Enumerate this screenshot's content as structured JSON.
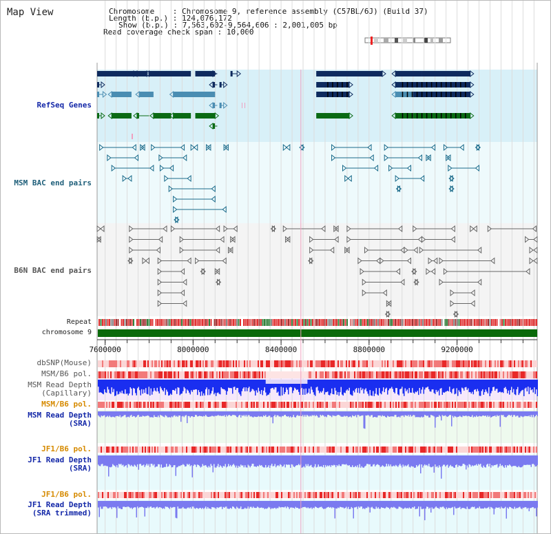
{
  "header": {
    "title": "Map View",
    "chromosome_label": "Chromosome",
    "chromosome_value": ": Chromosome 9, reference assembly (C57BL/6J) (Build 37)",
    "length_label": "Length (b.p.)",
    "length_value": ": 124,076,172",
    "show_label": "Show (b.p.)",
    "show_value": ": 7,563,602-9,564,606 : 2,001,005 bp",
    "read_span_label": "Read coverage check span",
    "read_span_value": ": 10,000"
  },
  "region": {
    "start": 7563602,
    "end": 9564606,
    "chrom_length": 124076172
  },
  "tracks": {
    "refseq": "RefSeq Genes",
    "msm_bac": "MSM BAC end pairs",
    "b6n_bac": "B6N BAC end pairs",
    "repeat": "Repeat",
    "chromosome": "chromosome 9",
    "dbsnp": "dbSNP(Mouse)",
    "msm_b6_pol_1": "MSM/B6 pol.",
    "msm_depth_cap_1": "MSM Read Depth",
    "msm_depth_cap_2": "(Capillary)",
    "msm_b6_pol_2": "MSM/B6 pol.",
    "msm_depth_sra_1": "MSM Read Depth",
    "msm_depth_sra_2": "(SRA)",
    "jf1_b6_pol_1": "JF1/B6 pol.",
    "jf1_depth_sra_1": "JF1 Read Depth",
    "jf1_depth_sra_2": "(SRA)",
    "jf1_b6_pol_2": "JF1/B6 pol.",
    "jf1_depth_trim_1": "JF1 Read Depth",
    "jf1_depth_trim_2": "(SRA trimmed)"
  },
  "axis": {
    "ticks": [
      {
        "value": 7600000,
        "label": "7600000"
      },
      {
        "value": 8000000,
        "label": "8000000"
      },
      {
        "value": 8400000,
        "label": "8400000"
      },
      {
        "value": 8800000,
        "label": "8800000"
      },
      {
        "value": 9200000,
        "label": "9200000"
      }
    ]
  },
  "genes": [
    {
      "start": 7563602,
      "end": 7790000,
      "strand": "+",
      "color": "#0e2a5e",
      "row": 0
    },
    {
      "start": 7635000,
      "end": 7730000,
      "strand": "+",
      "color": "#0e2a5e",
      "row": 0
    },
    {
      "start": 7745000,
      "end": 7800000,
      "strand": "-",
      "color": "#0e2a5e",
      "row": 0
    },
    {
      "start": 7800000,
      "end": 7990000,
      "strand": "-",
      "color": "#0e2a5e",
      "row": 0
    },
    {
      "start": 8010000,
      "end": 8090000,
      "strand": "+",
      "color": "#0e2a5e",
      "row": 0
    },
    {
      "start": 8090000,
      "end": 8110000,
      "strand": "-",
      "color": "#0e2a5e",
      "row": 0
    },
    {
      "start": 8170000,
      "end": 8200000,
      "strand": "+",
      "color": "#0e2a5e",
      "row": 0
    },
    {
      "start": 8560000,
      "end": 8860000,
      "strand": "+",
      "color": "#0e2a5e",
      "row": 0
    },
    {
      "start": 8920000,
      "end": 9040000,
      "strand": "-",
      "color": "#0e2a5e",
      "row": 0
    },
    {
      "start": 9040000,
      "end": 9260000,
      "strand": "+",
      "color": "#0e2a5e",
      "row": 0
    },
    {
      "start": 7563602,
      "end": 7575000,
      "strand": "+",
      "color": "#0e2a5e",
      "row": 1
    },
    {
      "start": 8090000,
      "end": 8110000,
      "strand": "-",
      "color": "#0e2a5e",
      "row": 1
    },
    {
      "start": 8120000,
      "end": 8130000,
      "strand": "+",
      "color": "#0e2a5e",
      "row": 1
    },
    {
      "start": 8560000,
      "end": 8710000,
      "strand": "+",
      "color": "#0e2a5e",
      "row": 1
    },
    {
      "start": 8920000,
      "end": 9040000,
      "strand": "-",
      "color": "#0e2a5e",
      "row": 1
    },
    {
      "start": 9040000,
      "end": 9260000,
      "strand": "+",
      "color": "#0e2a5e",
      "row": 1
    },
    {
      "start": 7563602,
      "end": 7590000,
      "strand": "+",
      "color": "#4a8db2",
      "row": 2
    },
    {
      "start": 7630000,
      "end": 7720000,
      "strand": "-",
      "color": "#4a8db2",
      "row": 2
    },
    {
      "start": 7755000,
      "end": 7820000,
      "strand": "-",
      "color": "#4a8db2",
      "row": 2
    },
    {
      "start": 7910000,
      "end": 8100000,
      "strand": "-",
      "color": "#4a8db2",
      "row": 2
    },
    {
      "start": 8560000,
      "end": 8710000,
      "strand": "+",
      "color": "#0e2a5e",
      "row": 2
    },
    {
      "start": 8920000,
      "end": 9000000,
      "strand": "-",
      "color": "#4a8db2",
      "row": 2
    },
    {
      "start": 9000000,
      "end": 9260000,
      "strand": "+",
      "color": "#0e2a5e",
      "row": 2
    },
    {
      "start": 8090000,
      "end": 8110000,
      "strand": "-",
      "color": "#4a8db2",
      "row": 3
    },
    {
      "start": 8120000,
      "end": 8130000,
      "strand": "+",
      "color": "#4a8db2",
      "row": 3
    },
    {
      "start": 7563602,
      "end": 7580000,
      "strand": "+",
      "color": "#0a6a14",
      "row": 4
    },
    {
      "start": 7630000,
      "end": 7720000,
      "strand": "-",
      "color": "#0a6a14",
      "row": 4
    },
    {
      "start": 7745000,
      "end": 7800000,
      "strand": "-",
      "color": "#0a6a14",
      "row": 4
    },
    {
      "start": 7820000,
      "end": 7900000,
      "strand": "-",
      "color": "#0a6a14",
      "row": 4
    },
    {
      "start": 7910000,
      "end": 7990000,
      "strand": "-",
      "color": "#0a6a14",
      "row": 4
    },
    {
      "start": 8010000,
      "end": 8100000,
      "strand": "+",
      "color": "#0a6a14",
      "row": 4
    },
    {
      "start": 8560000,
      "end": 8710000,
      "strand": "+",
      "color": "#0a6a14",
      "row": 4
    },
    {
      "start": 8920000,
      "end": 9000000,
      "strand": "-",
      "color": "#0a6a14",
      "row": 4
    },
    {
      "start": 9000000,
      "end": 9260000,
      "strand": "+",
      "color": "#0a6a14",
      "row": 4
    },
    {
      "start": 8090000,
      "end": 8110000,
      "strand": "-",
      "color": "#0a6a14",
      "row": 5
    }
  ],
  "msm_pairs": [
    {
      "start": 7575000,
      "end": 7740000,
      "row": 0
    },
    {
      "start": 7760000,
      "end": 7780000,
      "row": 0
    },
    {
      "start": 7810000,
      "end": 7960000,
      "row": 0
    },
    {
      "start": 7990000,
      "end": 8020000,
      "row": 0
    },
    {
      "start": 8060000,
      "end": 8080000,
      "row": 0
    },
    {
      "start": 8140000,
      "end": 8160000,
      "row": 0
    },
    {
      "start": 8410000,
      "end": 8440000,
      "row": 0
    },
    {
      "start": 8490000,
      "end": 8500000,
      "row": 0
    },
    {
      "start": 8630000,
      "end": 8810000,
      "row": 0
    },
    {
      "start": 8870000,
      "end": 9100000,
      "row": 0
    },
    {
      "start": 9140000,
      "end": 9230000,
      "row": 0
    },
    {
      "start": 9290000,
      "end": 9300000,
      "row": 0
    },
    {
      "start": 7610000,
      "end": 7750000,
      "row": 1
    },
    {
      "start": 7845000,
      "end": 7970000,
      "row": 1
    },
    {
      "start": 8630000,
      "end": 8820000,
      "row": 1
    },
    {
      "start": 8870000,
      "end": 9040000,
      "row": 1
    },
    {
      "start": 9060000,
      "end": 9080000,
      "row": 1
    },
    {
      "start": 9150000,
      "end": 9170000,
      "row": 1
    },
    {
      "start": 7630000,
      "end": 7820000,
      "row": 2
    },
    {
      "start": 7850000,
      "end": 7910000,
      "row": 2
    },
    {
      "start": 8680000,
      "end": 8840000,
      "row": 2
    },
    {
      "start": 8890000,
      "end": 8990000,
      "row": 2
    },
    {
      "start": 9160000,
      "end": 9300000,
      "row": 2
    },
    {
      "start": 7680000,
      "end": 7720000,
      "row": 3
    },
    {
      "start": 7870000,
      "end": 7990000,
      "row": 3
    },
    {
      "start": 8690000,
      "end": 8720000,
      "row": 3
    },
    {
      "start": 8920000,
      "end": 9050000,
      "row": 3
    },
    {
      "start": 9170000,
      "end": 9180000,
      "row": 3
    },
    {
      "start": 7890000,
      "end": 8100000,
      "row": 4
    },
    {
      "start": 8930000,
      "end": 8940000,
      "row": 4
    },
    {
      "start": 9170000,
      "end": 9180000,
      "row": 4
    },
    {
      "start": 7910000,
      "end": 8100000,
      "row": 5
    },
    {
      "start": 7910000,
      "end": 8150000,
      "row": 6
    },
    {
      "start": 7920000,
      "end": 7930000,
      "row": 7
    }
  ],
  "b6n_pairs": [
    {
      "start": 7563602,
      "end": 7595000,
      "row": 0
    },
    {
      "start": 7710000,
      "end": 7880000,
      "row": 0
    },
    {
      "start": 7900000,
      "end": 8120000,
      "row": 0
    },
    {
      "start": 8140000,
      "end": 8200000,
      "row": 0
    },
    {
      "start": 8360000,
      "end": 8370000,
      "row": 0
    },
    {
      "start": 8410000,
      "end": 8600000,
      "row": 0
    },
    {
      "start": 8640000,
      "end": 8660000,
      "row": 0
    },
    {
      "start": 8700000,
      "end": 8950000,
      "row": 0
    },
    {
      "start": 9000000,
      "end": 9190000,
      "row": 0
    },
    {
      "start": 9260000,
      "end": 9290000,
      "row": 0
    },
    {
      "start": 9340000,
      "end": 9560000,
      "row": 0
    },
    {
      "start": 7563602,
      "end": 7580000,
      "row": 1
    },
    {
      "start": 7710000,
      "end": 7860000,
      "row": 1
    },
    {
      "start": 7940000,
      "end": 8140000,
      "row": 1
    },
    {
      "start": 8170000,
      "end": 8190000,
      "row": 1
    },
    {
      "start": 8420000,
      "end": 8440000,
      "row": 1
    },
    {
      "start": 8530000,
      "end": 8660000,
      "row": 1
    },
    {
      "start": 8700000,
      "end": 9040000,
      "row": 1
    },
    {
      "start": 9040000,
      "end": 9190000,
      "row": 1
    },
    {
      "start": 9510000,
      "end": 9564606,
      "row": 1
    },
    {
      "start": 7710000,
      "end": 7850000,
      "row": 2
    },
    {
      "start": 7940000,
      "end": 8120000,
      "row": 2
    },
    {
      "start": 8160000,
      "end": 8180000,
      "row": 2
    },
    {
      "start": 8530000,
      "end": 8640000,
      "row": 2
    },
    {
      "start": 8690000,
      "end": 8710000,
      "row": 2
    },
    {
      "start": 8780000,
      "end": 8960000,
      "row": 2
    },
    {
      "start": 8960000,
      "end": 9020000,
      "row": 2
    },
    {
      "start": 9030000,
      "end": 9310000,
      "row": 2
    },
    {
      "start": 9530000,
      "end": 9564606,
      "row": 2
    },
    {
      "start": 7710000,
      "end": 7720000,
      "row": 3
    },
    {
      "start": 7770000,
      "end": 7800000,
      "row": 3
    },
    {
      "start": 7840000,
      "end": 7990000,
      "row": 3
    },
    {
      "start": 8010000,
      "end": 8150000,
      "row": 3
    },
    {
      "start": 8530000,
      "end": 8540000,
      "row": 3
    },
    {
      "start": 8750000,
      "end": 8850000,
      "row": 3
    },
    {
      "start": 8850000,
      "end": 8990000,
      "row": 3
    },
    {
      "start": 9070000,
      "end": 9110000,
      "row": 3
    },
    {
      "start": 9120000,
      "end": 9370000,
      "row": 3
    },
    {
      "start": 9530000,
      "end": 9564606,
      "row": 3
    },
    {
      "start": 7840000,
      "end": 7960000,
      "row": 4
    },
    {
      "start": 8040000,
      "end": 8050000,
      "row": 4
    },
    {
      "start": 8100000,
      "end": 8120000,
      "row": 4
    },
    {
      "start": 8760000,
      "end": 8940000,
      "row": 4
    },
    {
      "start": 9000000,
      "end": 9010000,
      "row": 4
    },
    {
      "start": 9060000,
      "end": 9100000,
      "row": 4
    },
    {
      "start": 9140000,
      "end": 9530000,
      "row": 4
    },
    {
      "start": 7840000,
      "end": 7970000,
      "row": 5
    },
    {
      "start": 8110000,
      "end": 8120000,
      "row": 5
    },
    {
      "start": 8770000,
      "end": 8960000,
      "row": 5
    },
    {
      "start": 9010000,
      "end": 9020000,
      "row": 5
    },
    {
      "start": 9120000,
      "end": 9310000,
      "row": 5
    },
    {
      "start": 7840000,
      "end": 7960000,
      "row": 6
    },
    {
      "start": 8770000,
      "end": 8880000,
      "row": 6
    },
    {
      "start": 9170000,
      "end": 9280000,
      "row": 6
    },
    {
      "start": 7840000,
      "end": 7970000,
      "row": 7
    },
    {
      "start": 8880000,
      "end": 8900000,
      "row": 7
    },
    {
      "start": 9170000,
      "end": 9280000,
      "row": 7
    },
    {
      "start": 8880000,
      "end": 8890000,
      "row": 8
    },
    {
      "start": 9190000,
      "end": 9200000,
      "row": 8
    }
  ],
  "colors": {
    "refseq_bg": "#d8f0f8",
    "msm_bg": "#eefafc",
    "b6n_bg": "#f4f4f4",
    "chromosome_bar": "#0a6a0a",
    "depth_blue": "#1a2ef0",
    "depth_violet": "#7a7af0",
    "pol_red": "#ee3333",
    "pol_light": "#fbd6d6",
    "repeat_red": "#e03030",
    "highlight_pink": "#f0a0c0"
  },
  "cursor_position": 8490000
}
